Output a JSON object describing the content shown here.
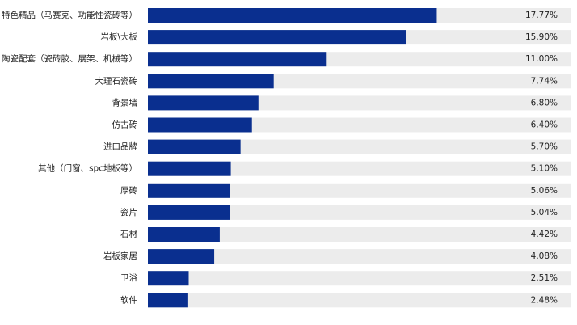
{
  "chart_data": {
    "type": "bar",
    "orientation": "horizontal",
    "categories": [
      "特色精品（马赛克、功能性瓷砖等）",
      "岩板\\大板",
      "陶瓷配套（瓷砖胶、展架、机械等）",
      "大理石瓷砖",
      "背景墙",
      "仿古砖",
      "进口品牌",
      "其他（门窗、spc地板等）",
      "厚砖",
      "瓷片",
      "石材",
      "岩板家居",
      "卫浴",
      "软件"
    ],
    "values": [
      17.77,
      15.9,
      11.0,
      7.74,
      6.8,
      6.4,
      5.7,
      5.1,
      5.06,
      5.04,
      4.42,
      4.08,
      2.51,
      2.48
    ],
    "value_labels": [
      "17.77%",
      "15.90%",
      "11.00%",
      "7.74%",
      "6.80%",
      "6.40%",
      "5.70%",
      "5.10%",
      "5.06%",
      "5.04%",
      "4.42%",
      "4.08%",
      "2.51%",
      "2.48%"
    ],
    "bar_color": "#0a2f8f",
    "track_color": "#ececec",
    "xlim": [
      0,
      26
    ]
  }
}
